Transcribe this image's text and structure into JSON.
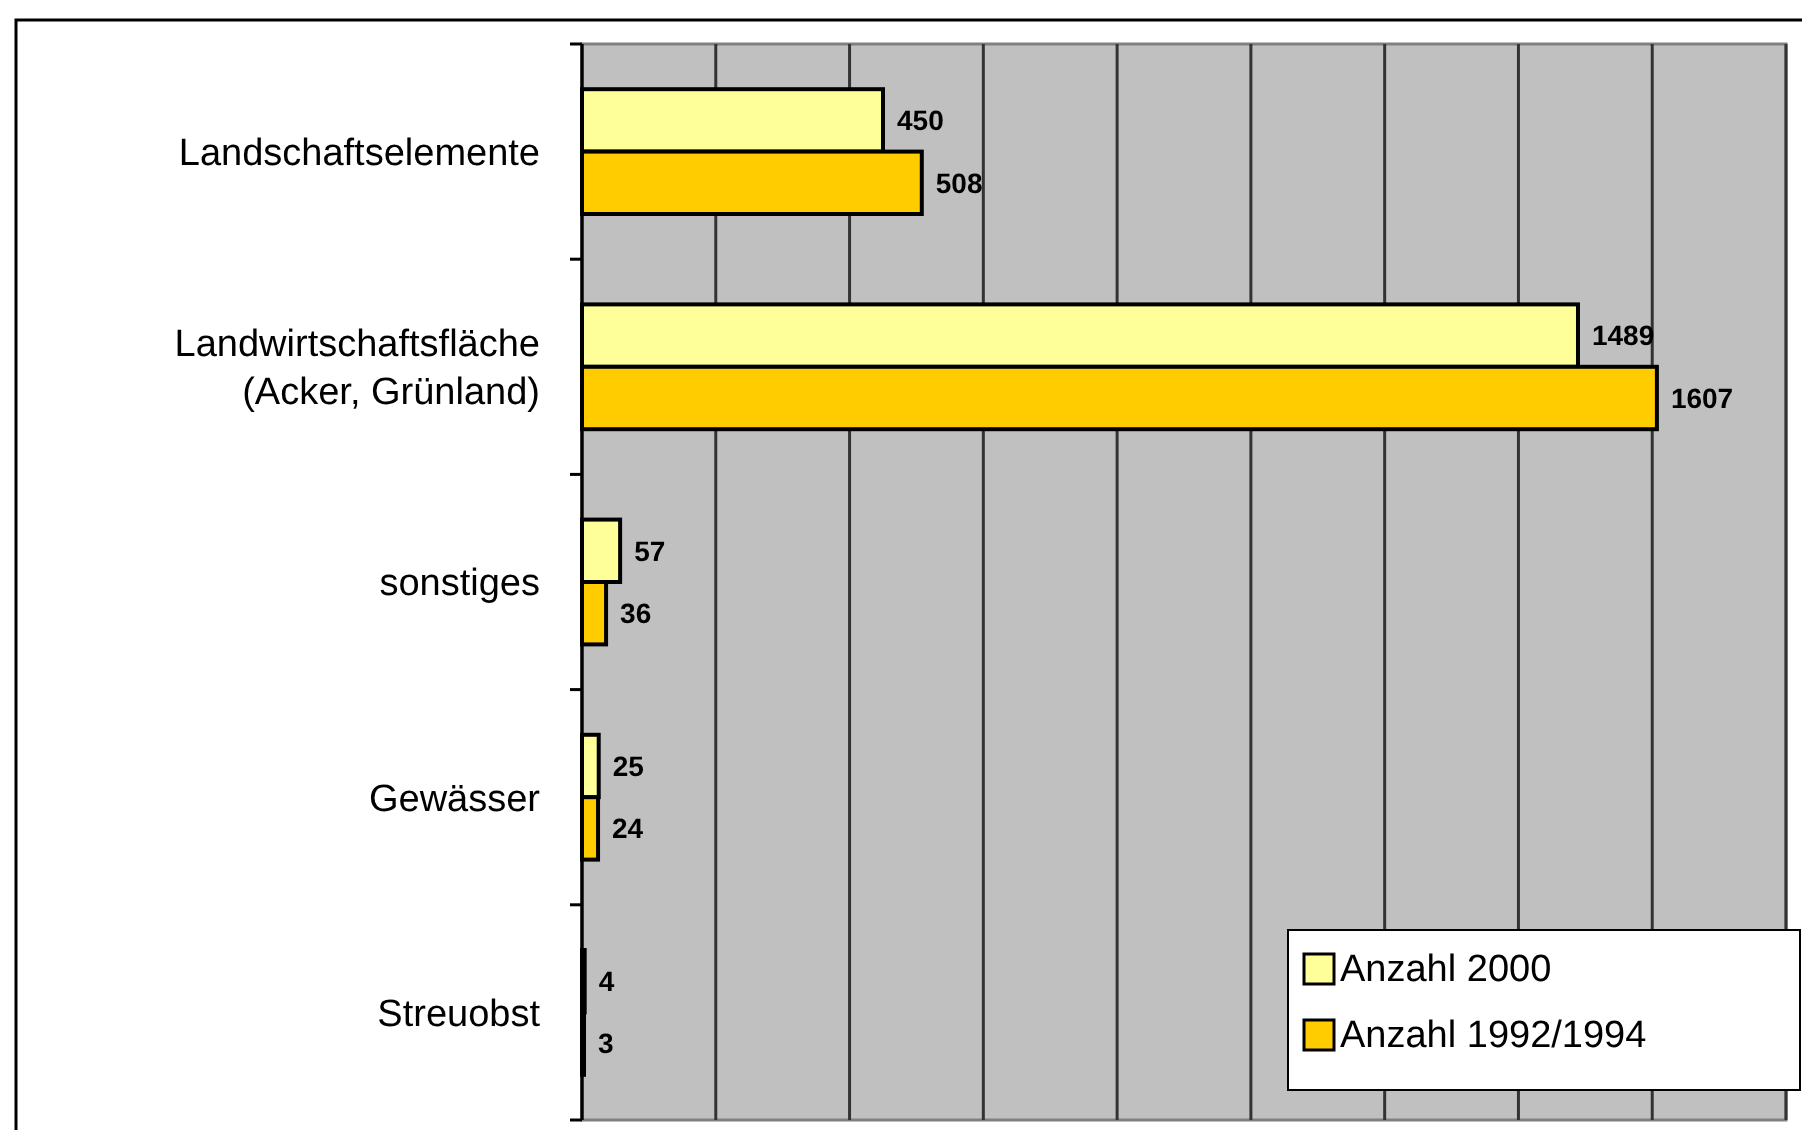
{
  "chart_data": {
    "type": "bar",
    "orientation": "horizontal",
    "categories": [
      "Landschaftselemente",
      "Landwirtschaftsfläche\n(Acker, Grünland)",
      "sonstiges",
      "Gewässer",
      "Streuobst"
    ],
    "series": [
      {
        "name": "Anzahl 2000",
        "color": "#ffff99",
        "values": [
          450,
          1489,
          57,
          25,
          4
        ]
      },
      {
        "name": "Anzahl 1992/1994",
        "color": "#ffcc00",
        "values": [
          508,
          1607,
          36,
          24,
          3
        ]
      }
    ],
    "xlim": [
      0,
      1800
    ],
    "xticks": [
      {
        "value": 0,
        "label": null
      },
      {
        "value": 200,
        "label": null
      },
      {
        "value": 400,
        "label": null
      },
      {
        "value": 600,
        "label": null
      },
      {
        "value": 800,
        "label": null
      },
      {
        "value": 1000,
        "label": null
      },
      {
        "value": 1200,
        "label": null
      },
      {
        "value": 1400,
        "label": null
      },
      {
        "value": 1600,
        "label": null
      },
      {
        "value": 1800,
        "label": null
      }
    ],
    "tick_labels": "y",
    "grid": "x",
    "data_labels": true,
    "legend": "bottom right"
  }
}
